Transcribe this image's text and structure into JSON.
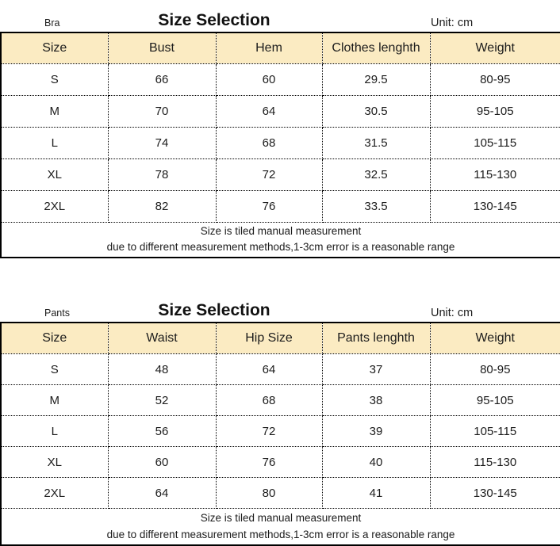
{
  "colors": {
    "header_bg": "#FBEBC2",
    "border": "#000000",
    "text": "#1c1c1c"
  },
  "tables": [
    {
      "category": "Bra",
      "title": "Size Selection",
      "unit": "Unit: cm",
      "columns": [
        "Size",
        "Bust",
        "Hem",
        "Clothes lenghth",
        "Weight"
      ],
      "rows": [
        [
          "S",
          "66",
          "60",
          "29.5",
          "80-95"
        ],
        [
          "M",
          "70",
          "64",
          "30.5",
          "95-105"
        ],
        [
          "L",
          "74",
          "68",
          "31.5",
          "105-115"
        ],
        [
          "XL",
          "78",
          "72",
          "32.5",
          "115-130"
        ],
        [
          "2XL",
          "82",
          "76",
          "33.5",
          "130-145"
        ]
      ],
      "notes": [
        "Size is tiled manual measurement",
        "due to different measurement methods,1-3cm error is a reasonable range"
      ]
    },
    {
      "category": "Pants",
      "title": "Size Selection",
      "unit": "Unit: cm",
      "columns": [
        "Size",
        "Waist",
        "Hip Size",
        "Pants lenghth",
        "Weight"
      ],
      "rows": [
        [
          "S",
          "48",
          "64",
          "37",
          "80-95"
        ],
        [
          "M",
          "52",
          "68",
          "38",
          "95-105"
        ],
        [
          "L",
          "56",
          "72",
          "39",
          "105-115"
        ],
        [
          "XL",
          "60",
          "76",
          "40",
          "115-130"
        ],
        [
          "2XL",
          "64",
          "80",
          "41",
          "130-145"
        ]
      ],
      "notes": [
        "Size is tiled manual measurement",
        "due to different measurement methods,1-3cm error is a reasonable range"
      ]
    }
  ]
}
